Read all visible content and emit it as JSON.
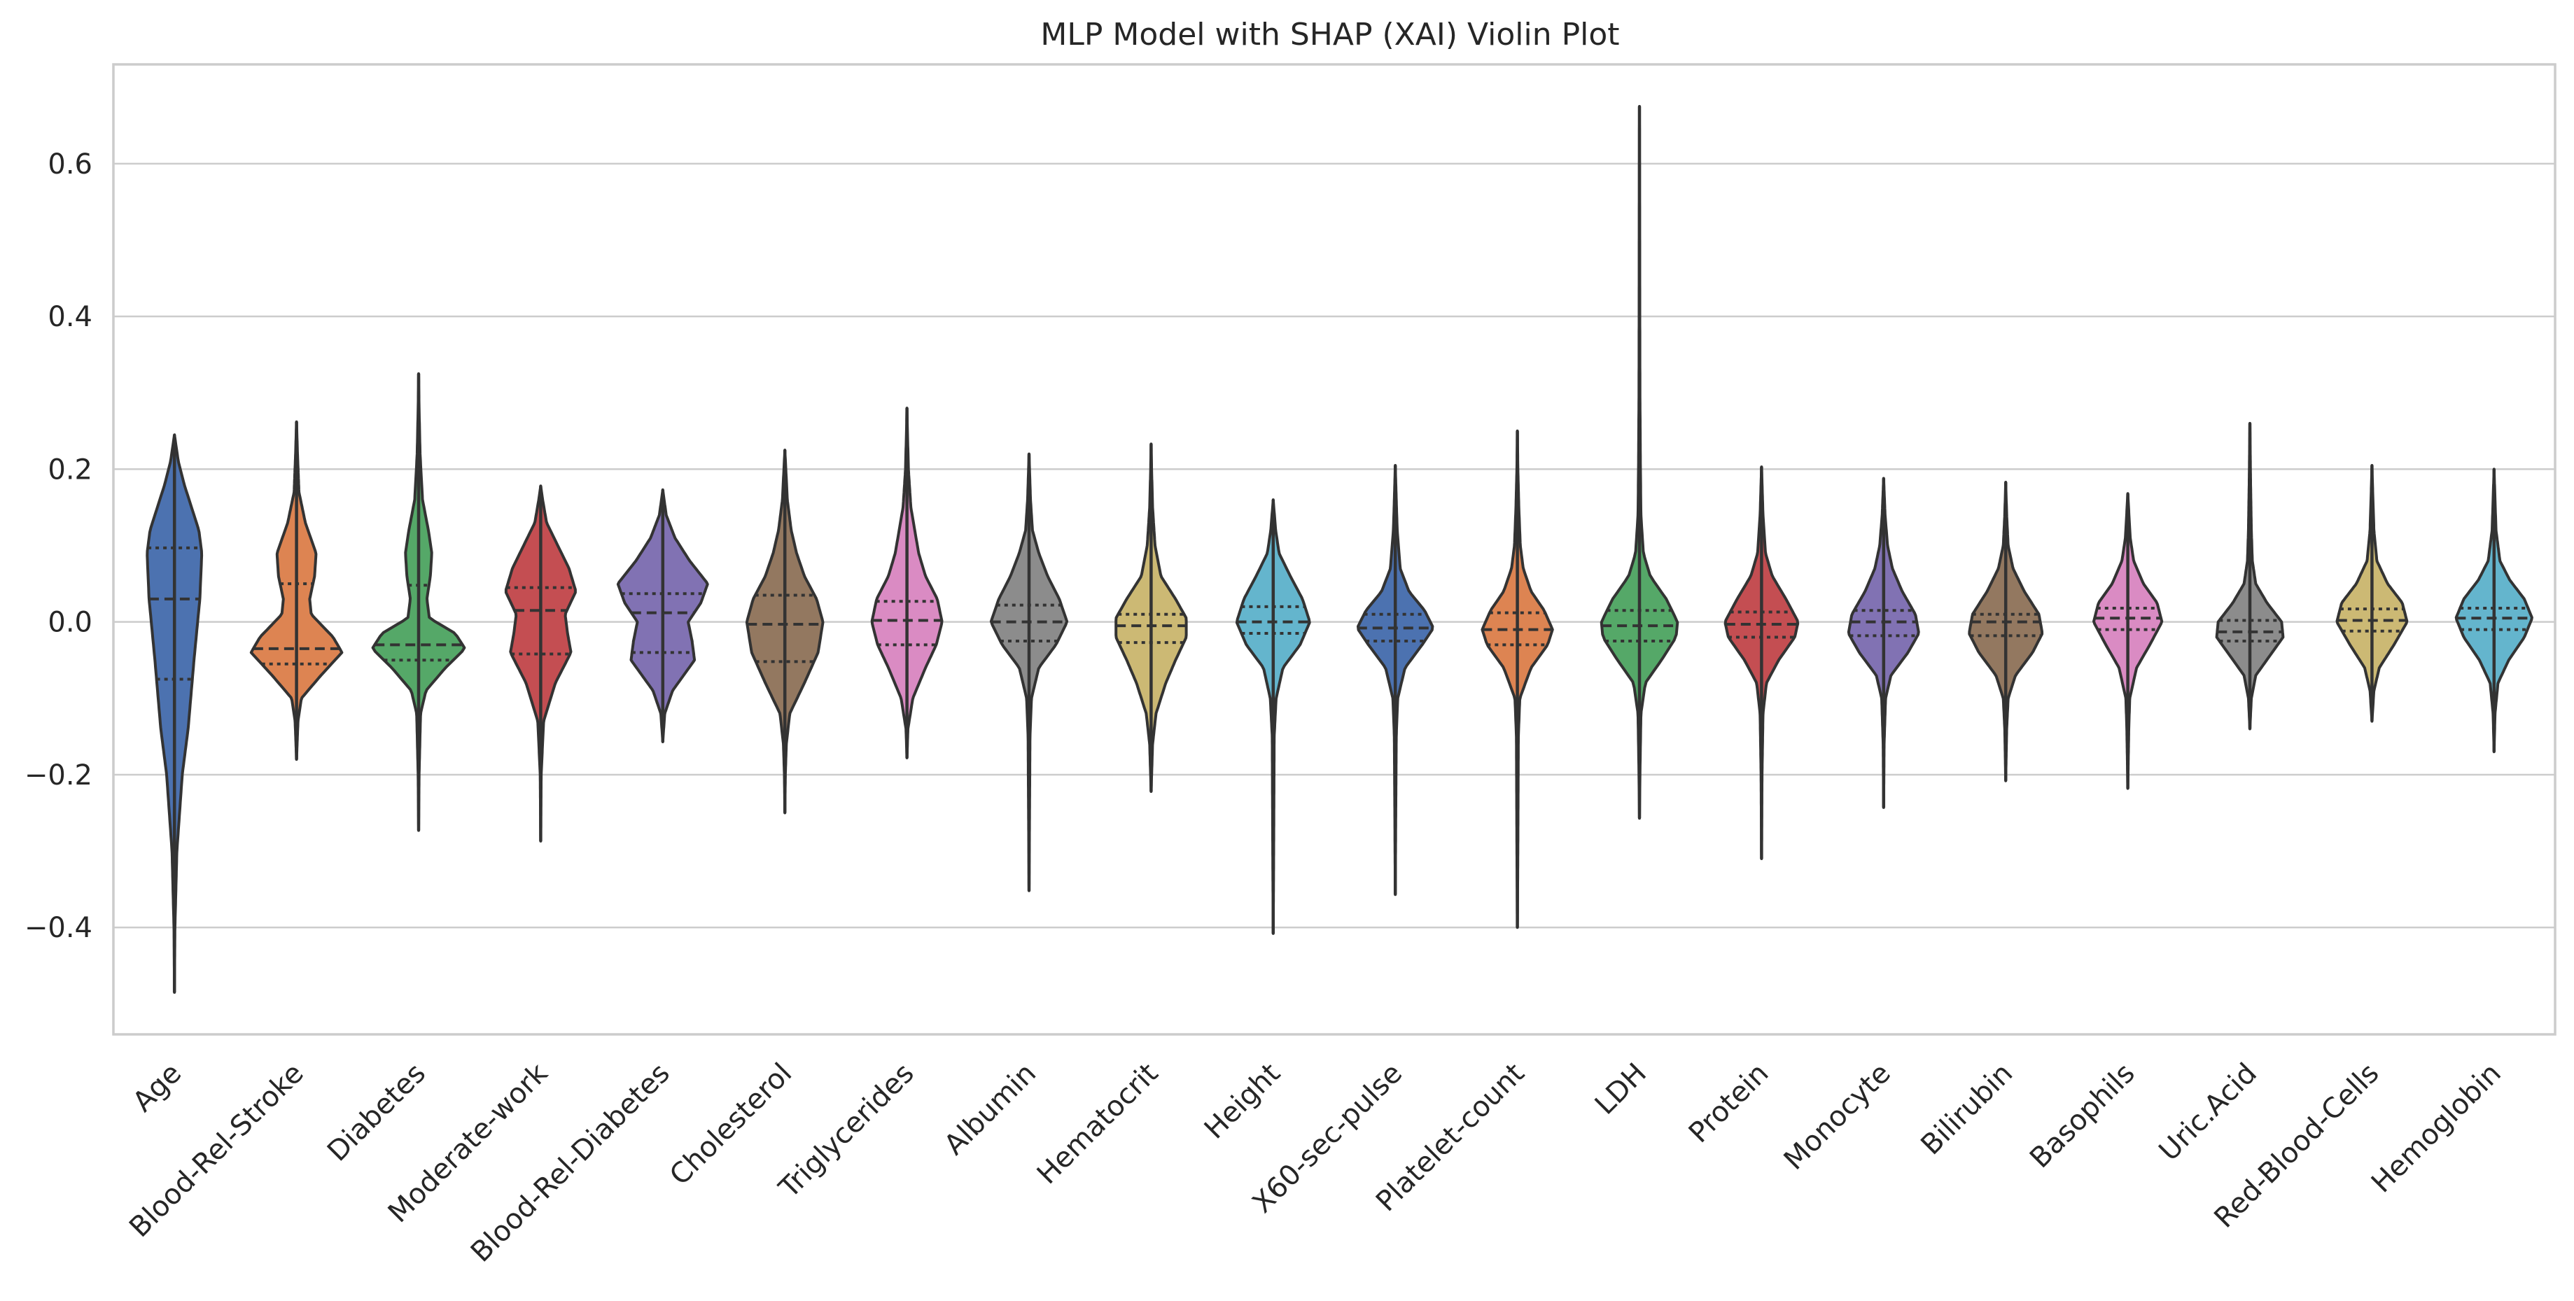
{
  "chart_data": {
    "type": "violin",
    "title": "MLP Model with SHAP (XAI) Violin Plot",
    "xlabel": "",
    "ylabel": "",
    "ylim": [
      -0.54,
      0.73
    ],
    "yticks": [
      -0.4,
      -0.2,
      0.0,
      0.2,
      0.4,
      0.6
    ],
    "ytick_labels": [
      "−0.4",
      "−0.2",
      "0.0",
      "0.2",
      "0.4",
      "0.6"
    ],
    "grid": "horizontal",
    "categories": [
      "Age",
      "Blood-Rel-Stroke",
      "Diabetes",
      "Moderate-work",
      "Blood-Rel-Diabetes",
      "Cholesterol",
      "Triglycerides",
      "Albumin",
      "Hematocrit",
      "Height",
      "X60-sec-pulse",
      "Platelet-count",
      "LDH",
      "Protein",
      "Monocyte",
      "Bilirubin",
      "Basophils",
      "Uric.Acid",
      "Red-Blood-Cells",
      "Hemoglobin"
    ],
    "series": [
      {
        "min": -0.485,
        "max": 0.245,
        "q1": -0.075,
        "median": 0.03,
        "q3": 0.097,
        "color": "#4c72b0",
        "profile": [
          [
            -0.485,
            0
          ],
          [
            -0.4,
            0.01
          ],
          [
            -0.3,
            0.05
          ],
          [
            -0.2,
            0.16
          ],
          [
            -0.14,
            0.28
          ],
          [
            -0.05,
            0.4
          ],
          [
            0.03,
            0.52
          ],
          [
            0.09,
            0.56
          ],
          [
            0.12,
            0.5
          ],
          [
            0.15,
            0.35
          ],
          [
            0.18,
            0.2
          ],
          [
            0.21,
            0.08
          ],
          [
            0.245,
            0
          ]
        ]
      },
      {
        "min": -0.18,
        "max": 0.262,
        "q1": -0.055,
        "median": -0.035,
        "q3": 0.05,
        "color": "#dd8452",
        "profile": [
          [
            -0.18,
            0
          ],
          [
            -0.13,
            0.03
          ],
          [
            -0.1,
            0.1
          ],
          [
            -0.07,
            0.5
          ],
          [
            -0.04,
            0.93
          ],
          [
            -0.02,
            0.75
          ],
          [
            0.01,
            0.3
          ],
          [
            0.03,
            0.27
          ],
          [
            0.06,
            0.37
          ],
          [
            0.09,
            0.4
          ],
          [
            0.13,
            0.18
          ],
          [
            0.17,
            0.05
          ],
          [
            0.22,
            0.02
          ],
          [
            0.262,
            0
          ]
        ]
      },
      {
        "min": -0.273,
        "max": 0.325,
        "q1": -0.05,
        "median": -0.03,
        "q3": 0.048,
        "color": "#55a868",
        "profile": [
          [
            -0.273,
            0
          ],
          [
            -0.2,
            0.01
          ],
          [
            -0.12,
            0.04
          ],
          [
            -0.09,
            0.15
          ],
          [
            -0.06,
            0.55
          ],
          [
            -0.035,
            0.95
          ],
          [
            -0.015,
            0.75
          ],
          [
            0.005,
            0.22
          ],
          [
            0.03,
            0.17
          ],
          [
            0.06,
            0.24
          ],
          [
            0.09,
            0.27
          ],
          [
            0.12,
            0.2
          ],
          [
            0.16,
            0.08
          ],
          [
            0.22,
            0.03
          ],
          [
            0.28,
            0.01
          ],
          [
            0.325,
            0
          ]
        ]
      },
      {
        "min": -0.287,
        "max": 0.178,
        "q1": -0.042,
        "median": 0.015,
        "q3": 0.045,
        "color": "#c44e52",
        "profile": [
          [
            -0.287,
            0
          ],
          [
            -0.2,
            0.01
          ],
          [
            -0.13,
            0.06
          ],
          [
            -0.08,
            0.3
          ],
          [
            -0.04,
            0.62
          ],
          [
            -0.015,
            0.55
          ],
          [
            0.01,
            0.5
          ],
          [
            0.04,
            0.72
          ],
          [
            0.07,
            0.58
          ],
          [
            0.1,
            0.35
          ],
          [
            0.13,
            0.12
          ],
          [
            0.16,
            0.04
          ],
          [
            0.178,
            0
          ]
        ]
      },
      {
        "min": -0.157,
        "max": 0.173,
        "q1": -0.04,
        "median": 0.012,
        "q3": 0.037,
        "color": "#8172b3",
        "profile": [
          [
            -0.157,
            0
          ],
          [
            -0.12,
            0.04
          ],
          [
            -0.09,
            0.2
          ],
          [
            -0.05,
            0.65
          ],
          [
            -0.025,
            0.6
          ],
          [
            0,
            0.52
          ],
          [
            0.025,
            0.78
          ],
          [
            0.05,
            0.92
          ],
          [
            0.08,
            0.55
          ],
          [
            0.11,
            0.25
          ],
          [
            0.14,
            0.07
          ],
          [
            0.173,
            0
          ]
        ]
      },
      {
        "min": -0.25,
        "max": 0.225,
        "q1": -0.052,
        "median": -0.003,
        "q3": 0.035,
        "color": "#937860",
        "profile": [
          [
            -0.25,
            0
          ],
          [
            -0.2,
            0.01
          ],
          [
            -0.16,
            0.03
          ],
          [
            -0.12,
            0.1
          ],
          [
            -0.08,
            0.4
          ],
          [
            -0.04,
            0.68
          ],
          [
            0,
            0.78
          ],
          [
            0.03,
            0.65
          ],
          [
            0.06,
            0.4
          ],
          [
            0.09,
            0.24
          ],
          [
            0.12,
            0.13
          ],
          [
            0.16,
            0.05
          ],
          [
            0.2,
            0.02
          ],
          [
            0.225,
            0
          ]
        ]
      },
      {
        "min": -0.178,
        "max": 0.28,
        "q1": -0.03,
        "median": 0.002,
        "q3": 0.027,
        "color": "#da8bc3",
        "profile": [
          [
            -0.178,
            0
          ],
          [
            -0.14,
            0.02
          ],
          [
            -0.1,
            0.12
          ],
          [
            -0.06,
            0.38
          ],
          [
            -0.03,
            0.6
          ],
          [
            0,
            0.72
          ],
          [
            0.03,
            0.62
          ],
          [
            0.06,
            0.38
          ],
          [
            0.09,
            0.24
          ],
          [
            0.12,
            0.16
          ],
          [
            0.15,
            0.08
          ],
          [
            0.2,
            0.03
          ],
          [
            0.25,
            0.01
          ],
          [
            0.28,
            0
          ]
        ]
      },
      {
        "min": -0.352,
        "max": 0.22,
        "q1": -0.025,
        "median": 0.0,
        "q3": 0.022,
        "color": "#8c8c8c",
        "profile": [
          [
            -0.352,
            0
          ],
          [
            -0.25,
            0.01
          ],
          [
            -0.15,
            0.02
          ],
          [
            -0.1,
            0.05
          ],
          [
            -0.06,
            0.2
          ],
          [
            -0.03,
            0.55
          ],
          [
            0,
            0.78
          ],
          [
            0.03,
            0.62
          ],
          [
            0.06,
            0.38
          ],
          [
            0.09,
            0.2
          ],
          [
            0.12,
            0.07
          ],
          [
            0.16,
            0.03
          ],
          [
            0.22,
            0
          ]
        ]
      },
      {
        "min": -0.222,
        "max": 0.233,
        "q1": -0.027,
        "median": -0.005,
        "q3": 0.01,
        "color": "#ccb974",
        "profile": [
          [
            -0.222,
            0
          ],
          [
            -0.16,
            0.03
          ],
          [
            -0.12,
            0.1
          ],
          [
            -0.08,
            0.3
          ],
          [
            -0.05,
            0.5
          ],
          [
            -0.02,
            0.72
          ],
          [
            0.005,
            0.72
          ],
          [
            0.03,
            0.5
          ],
          [
            0.06,
            0.2
          ],
          [
            0.1,
            0.08
          ],
          [
            0.15,
            0.03
          ],
          [
            0.2,
            0.01
          ],
          [
            0.233,
            0
          ]
        ]
      },
      {
        "min": -0.408,
        "max": 0.16,
        "q1": -0.015,
        "median": 0.0,
        "q3": 0.02,
        "color": "#64b5cd",
        "profile": [
          [
            -0.408,
            0
          ],
          [
            -0.3,
            0.01
          ],
          [
            -0.15,
            0.02
          ],
          [
            -0.1,
            0.06
          ],
          [
            -0.06,
            0.2
          ],
          [
            -0.03,
            0.55
          ],
          [
            0,
            0.75
          ],
          [
            0.03,
            0.6
          ],
          [
            0.06,
            0.35
          ],
          [
            0.09,
            0.12
          ],
          [
            0.12,
            0.05
          ],
          [
            0.16,
            0
          ]
        ]
      },
      {
        "min": -0.357,
        "max": 0.205,
        "q1": -0.025,
        "median": -0.008,
        "q3": 0.01,
        "color": "#4c72b0",
        "profile": [
          [
            -0.357,
            0
          ],
          [
            -0.25,
            0.01
          ],
          [
            -0.15,
            0.02
          ],
          [
            -0.1,
            0.05
          ],
          [
            -0.06,
            0.2
          ],
          [
            -0.03,
            0.55
          ],
          [
            -0.008,
            0.78
          ],
          [
            0.015,
            0.6
          ],
          [
            0.04,
            0.28
          ],
          [
            0.07,
            0.1
          ],
          [
            0.12,
            0.04
          ],
          [
            0.16,
            0.02
          ],
          [
            0.205,
            0
          ]
        ]
      },
      {
        "min": -0.4,
        "max": 0.25,
        "q1": -0.03,
        "median": -0.01,
        "q3": 0.012,
        "color": "#dd8452",
        "profile": [
          [
            -0.4,
            0
          ],
          [
            -0.3,
            0.01
          ],
          [
            -0.15,
            0.02
          ],
          [
            -0.1,
            0.05
          ],
          [
            -0.06,
            0.28
          ],
          [
            -0.03,
            0.62
          ],
          [
            -0.01,
            0.72
          ],
          [
            0.015,
            0.55
          ],
          [
            0.04,
            0.28
          ],
          [
            0.07,
            0.12
          ],
          [
            0.1,
            0.06
          ],
          [
            0.15,
            0.03
          ],
          [
            0.2,
            0.01
          ],
          [
            0.25,
            0
          ]
        ]
      },
      {
        "min": -0.257,
        "max": 0.675,
        "q1": -0.025,
        "median": -0.005,
        "q3": 0.015,
        "color": "#55a868",
        "profile": [
          [
            -0.257,
            0
          ],
          [
            -0.2,
            0.01
          ],
          [
            -0.12,
            0.03
          ],
          [
            -0.08,
            0.12
          ],
          [
            -0.05,
            0.45
          ],
          [
            -0.02,
            0.75
          ],
          [
            0,
            0.78
          ],
          [
            0.03,
            0.55
          ],
          [
            0.06,
            0.22
          ],
          [
            0.09,
            0.08
          ],
          [
            0.14,
            0.03
          ],
          [
            0.2,
            0.02
          ],
          [
            0.3,
            0.01
          ],
          [
            0.5,
            0.005
          ],
          [
            0.675,
            0
          ]
        ]
      },
      {
        "min": -0.31,
        "max": 0.203,
        "q1": -0.02,
        "median": -0.003,
        "q3": 0.013,
        "color": "#c44e52",
        "profile": [
          [
            -0.31,
            0
          ],
          [
            -0.2,
            0.01
          ],
          [
            -0.12,
            0.03
          ],
          [
            -0.08,
            0.1
          ],
          [
            -0.05,
            0.35
          ],
          [
            -0.02,
            0.68
          ],
          [
            0,
            0.75
          ],
          [
            0.03,
            0.5
          ],
          [
            0.06,
            0.22
          ],
          [
            0.09,
            0.08
          ],
          [
            0.14,
            0.03
          ],
          [
            0.203,
            0
          ]
        ]
      },
      {
        "min": -0.243,
        "max": 0.188,
        "q1": -0.018,
        "median": 0.0,
        "q3": 0.015,
        "color": "#8172b3",
        "profile": [
          [
            -0.243,
            0
          ],
          [
            -0.16,
            0.01
          ],
          [
            -0.1,
            0.04
          ],
          [
            -0.07,
            0.15
          ],
          [
            -0.04,
            0.5
          ],
          [
            -0.015,
            0.72
          ],
          [
            0.01,
            0.65
          ],
          [
            0.04,
            0.38
          ],
          [
            0.07,
            0.18
          ],
          [
            0.1,
            0.08
          ],
          [
            0.14,
            0.03
          ],
          [
            0.188,
            0
          ]
        ]
      },
      {
        "min": -0.208,
        "max": 0.183,
        "q1": -0.018,
        "median": 0.0,
        "q3": 0.01,
        "color": "#937860",
        "profile": [
          [
            -0.208,
            0
          ],
          [
            -0.14,
            0.02
          ],
          [
            -0.1,
            0.05
          ],
          [
            -0.07,
            0.2
          ],
          [
            -0.04,
            0.55
          ],
          [
            -0.015,
            0.75
          ],
          [
            0.01,
            0.68
          ],
          [
            0.04,
            0.38
          ],
          [
            0.07,
            0.15
          ],
          [
            0.1,
            0.05
          ],
          [
            0.14,
            0.02
          ],
          [
            0.183,
            0
          ]
        ]
      },
      {
        "min": -0.218,
        "max": 0.168,
        "q1": -0.01,
        "median": 0.005,
        "q3": 0.018,
        "color": "#da8bc3",
        "profile": [
          [
            -0.218,
            0
          ],
          [
            -0.14,
            0.02
          ],
          [
            -0.1,
            0.04
          ],
          [
            -0.06,
            0.18
          ],
          [
            -0.03,
            0.45
          ],
          [
            0,
            0.7
          ],
          [
            0.025,
            0.6
          ],
          [
            0.05,
            0.32
          ],
          [
            0.08,
            0.12
          ],
          [
            0.11,
            0.05
          ],
          [
            0.168,
            0
          ]
        ]
      },
      {
        "min": -0.14,
        "max": 0.26,
        "q1": -0.025,
        "median": -0.013,
        "q3": 0.002,
        "color": "#8c8c8c",
        "profile": [
          [
            -0.14,
            0
          ],
          [
            -0.1,
            0.03
          ],
          [
            -0.07,
            0.12
          ],
          [
            -0.045,
            0.4
          ],
          [
            -0.02,
            0.68
          ],
          [
            0,
            0.65
          ],
          [
            0.025,
            0.35
          ],
          [
            0.05,
            0.12
          ],
          [
            0.08,
            0.05
          ],
          [
            0.12,
            0.03
          ],
          [
            0.18,
            0.015
          ],
          [
            0.26,
            0
          ]
        ]
      },
      {
        "min": -0.13,
        "max": 0.205,
        "q1": -0.012,
        "median": 0.002,
        "q3": 0.017,
        "color": "#ccb974",
        "profile": [
          [
            -0.13,
            0
          ],
          [
            -0.09,
            0.04
          ],
          [
            -0.06,
            0.15
          ],
          [
            -0.03,
            0.45
          ],
          [
            0,
            0.72
          ],
          [
            0.025,
            0.62
          ],
          [
            0.05,
            0.32
          ],
          [
            0.08,
            0.1
          ],
          [
            0.12,
            0.04
          ],
          [
            0.16,
            0.02
          ],
          [
            0.205,
            0
          ]
        ]
      },
      {
        "min": -0.17,
        "max": 0.2,
        "q1": -0.01,
        "median": 0.005,
        "q3": 0.018,
        "color": "#64b5cd",
        "profile": [
          [
            -0.17,
            0
          ],
          [
            -0.12,
            0.02
          ],
          [
            -0.08,
            0.08
          ],
          [
            -0.05,
            0.3
          ],
          [
            -0.02,
            0.62
          ],
          [
            0.005,
            0.78
          ],
          [
            0.03,
            0.62
          ],
          [
            0.055,
            0.32
          ],
          [
            0.08,
            0.12
          ],
          [
            0.12,
            0.04
          ],
          [
            0.2,
            0
          ]
        ]
      }
    ]
  }
}
